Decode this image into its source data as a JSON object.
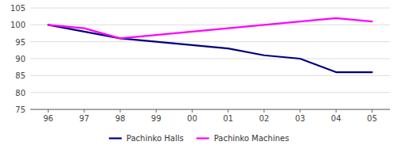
{
  "chart_data": {
    "type": "line",
    "categories": [
      "96",
      "97",
      "98",
      "99",
      "00",
      "01",
      "02",
      "03",
      "04",
      "05"
    ],
    "series": [
      {
        "name": "Pachinko Halls",
        "color": "#000080",
        "values": [
          100,
          98,
          96,
          95,
          94,
          93,
          91,
          90,
          86,
          86
        ]
      },
      {
        "name": "Pachinko Machines",
        "color": "#FF00FF",
        "values": [
          100,
          99,
          96,
          97,
          98,
          99,
          100,
          101,
          102,
          101
        ]
      }
    ],
    "ylim": [
      75,
      105
    ],
    "yticks": [
      75,
      80,
      85,
      90,
      95,
      100,
      105
    ],
    "grid": true,
    "legend": "bottom"
  }
}
